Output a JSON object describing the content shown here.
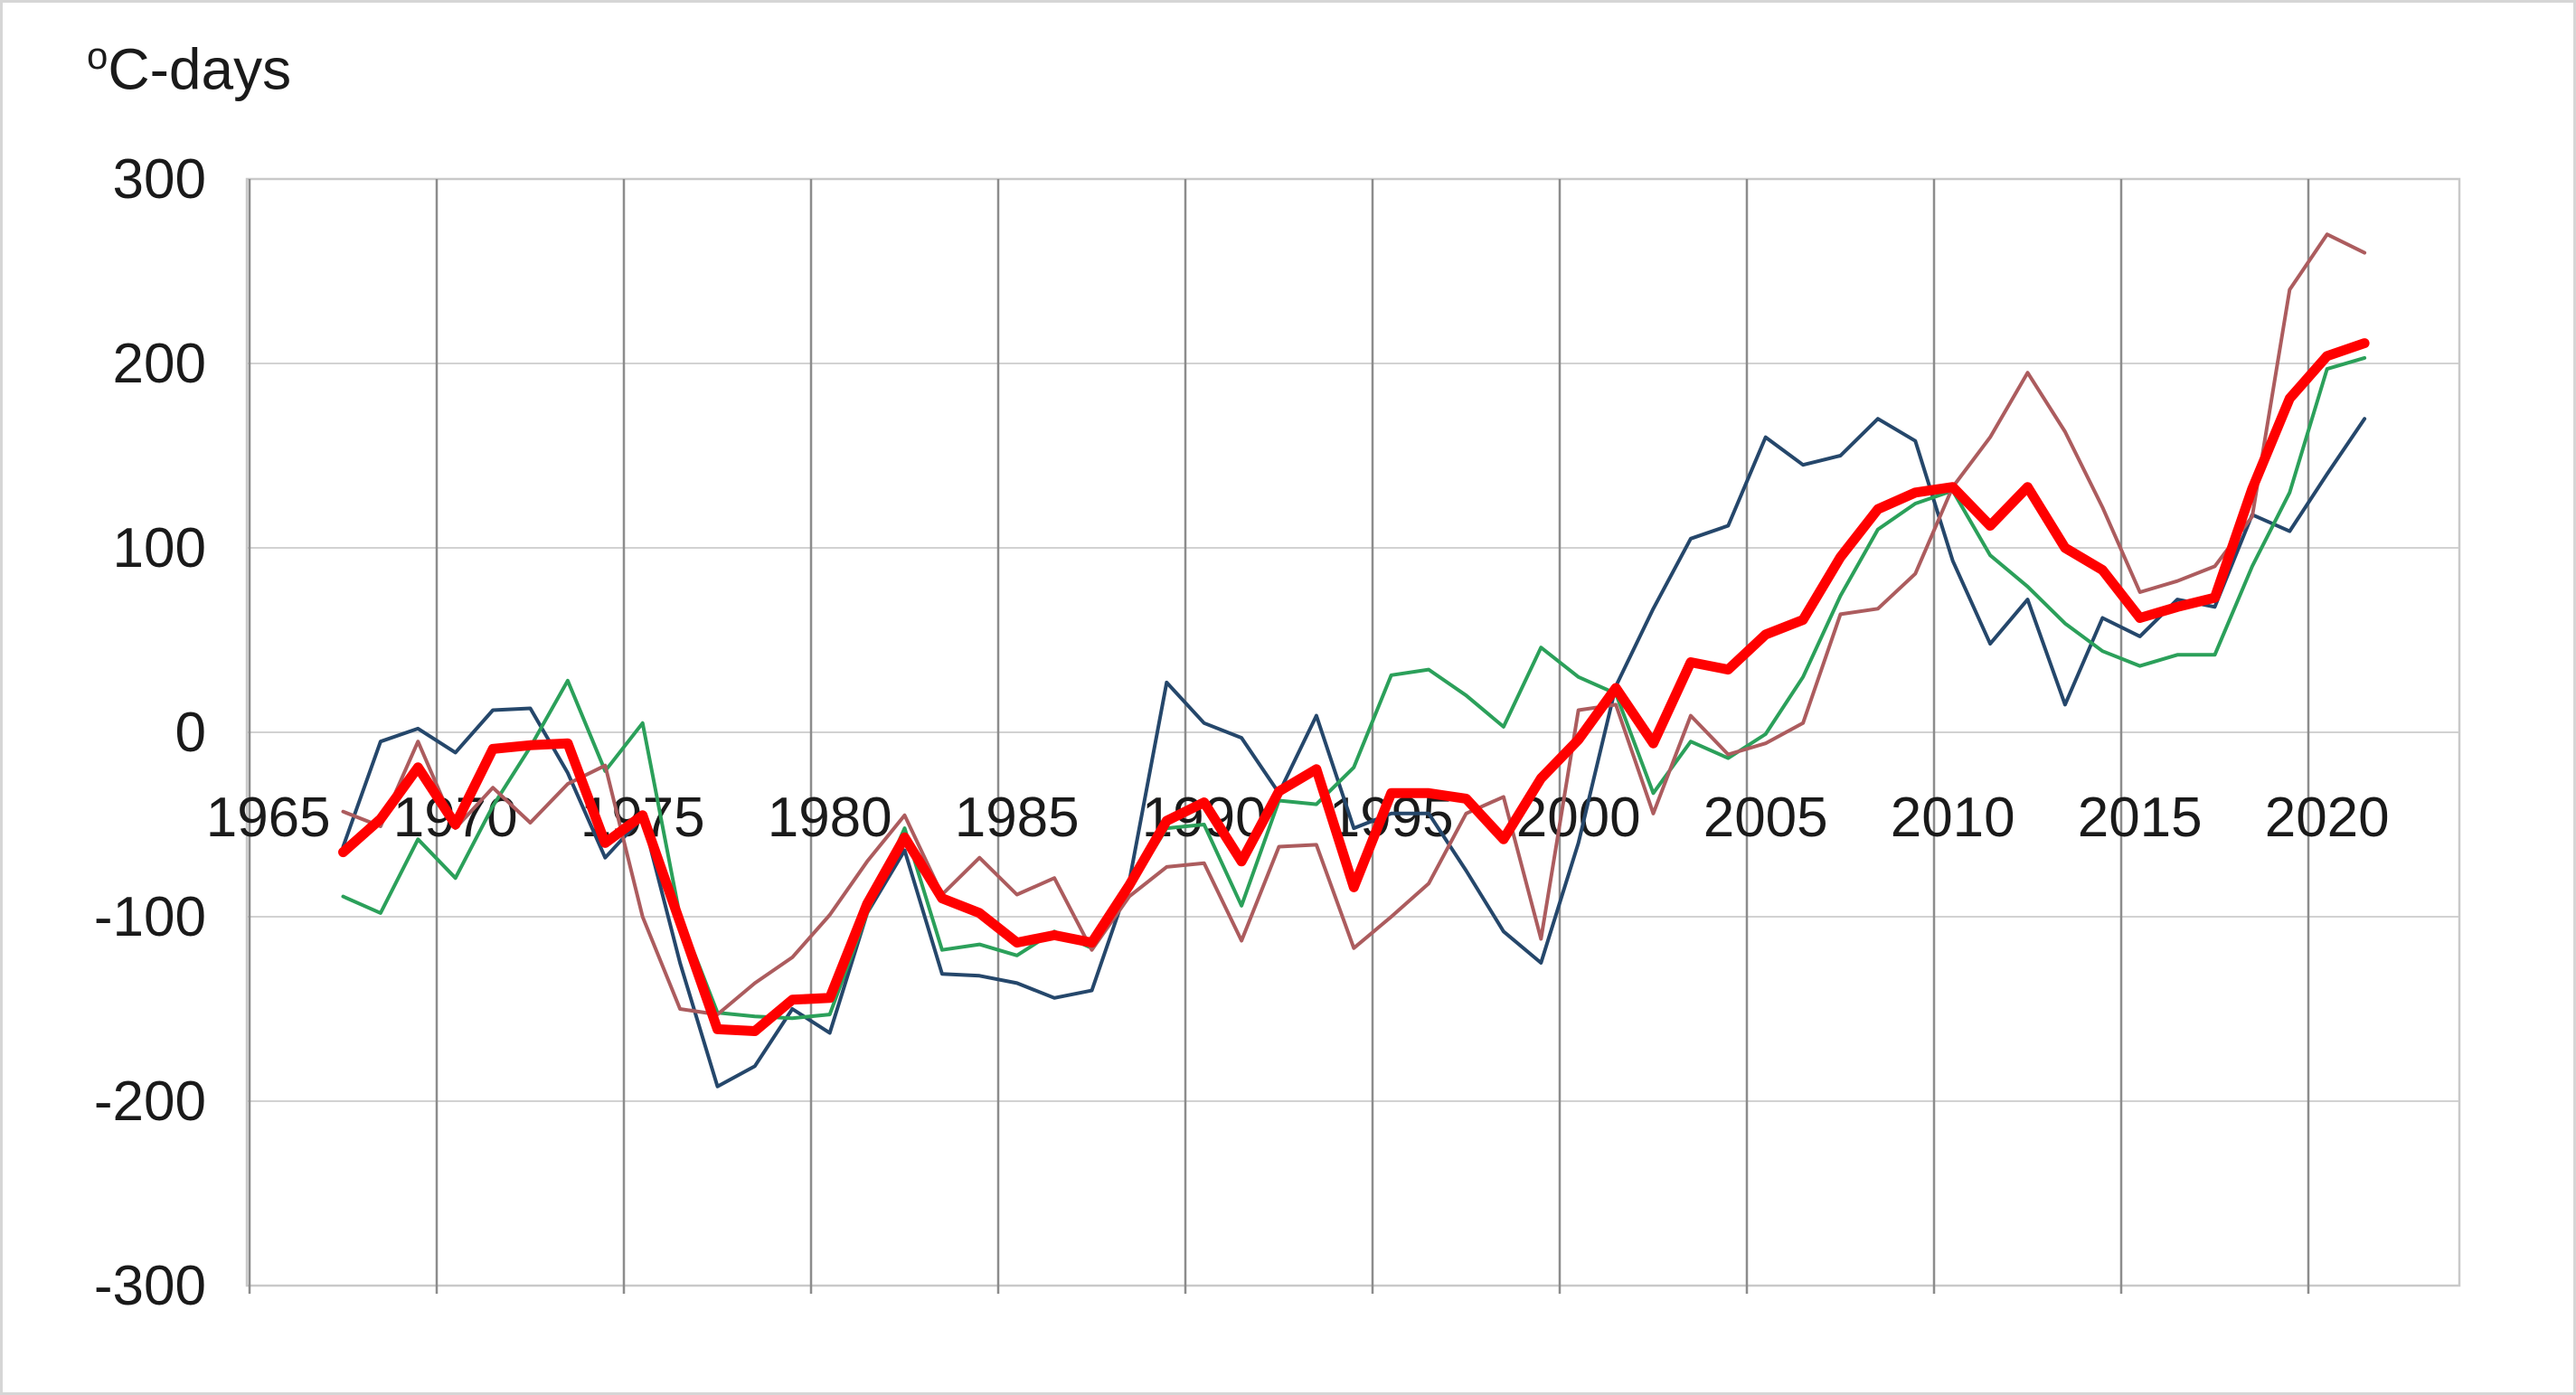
{
  "title": "°C-days",
  "title_base": "C-days",
  "title_superscript": "o",
  "chart_data": {
    "type": "line",
    "title": "°C-days",
    "xlabel": "",
    "ylabel": "°C-days",
    "x": [
      1967,
      1968,
      1969,
      1970,
      1971,
      1972,
      1973,
      1974,
      1975,
      1976,
      1977,
      1978,
      1979,
      1980,
      1981,
      1982,
      1983,
      1984,
      1985,
      1986,
      1987,
      1988,
      1989,
      1990,
      1991,
      1992,
      1993,
      1994,
      1995,
      1996,
      1997,
      1998,
      1999,
      2000,
      2001,
      2002,
      2003,
      2004,
      2005,
      2006,
      2007,
      2008,
      2009,
      2010,
      2011,
      2012,
      2013,
      2014,
      2015,
      2016,
      2017,
      2018,
      2019,
      2020,
      2021
    ],
    "x_ticks": [
      1965,
      1970,
      1975,
      1980,
      1985,
      1990,
      1995,
      2000,
      2005,
      2010,
      2015,
      2020
    ],
    "y_ticks": [
      300,
      200,
      100,
      0,
      -100,
      -200,
      -300
    ],
    "ylim": [
      -300,
      300
    ],
    "xlim": [
      1964.5,
      2023.5
    ],
    "grid": {
      "vertical": true,
      "horizontal": true
    },
    "legend_position": "none",
    "series": [
      {
        "name": "dark-blue-thin",
        "color": "#25476B",
        "width": 4,
        "values": [
          -62,
          -5,
          2,
          -11,
          12,
          13,
          -22,
          -68,
          -46,
          -125,
          -192,
          -181,
          -150,
          -163,
          -98,
          -64,
          -131,
          -132,
          -136,
          -144,
          -140,
          -81,
          27,
          5,
          -3,
          -33,
          9,
          -52,
          -44,
          -44,
          -75,
          -108,
          -125,
          -60,
          25,
          67,
          105,
          112,
          160,
          145,
          150,
          170,
          158,
          93,
          48,
          72,
          15,
          62,
          52,
          72,
          68,
          118,
          109,
          140,
          170
        ]
      },
      {
        "name": "green-thin",
        "color": "#2BA05A",
        "width": 4,
        "values": [
          -89,
          -98,
          -58,
          -79,
          -40,
          -8,
          28,
          -21,
          5,
          -100,
          -152,
          -154,
          -155,
          -153,
          -98,
          -52,
          -118,
          -115,
          -121,
          -108,
          -117,
          -85,
          -52,
          -50,
          -94,
          -37,
          -39,
          -19,
          31,
          34,
          20,
          3,
          46,
          30,
          21,
          -33,
          -5,
          -14,
          -1,
          30,
          74,
          110,
          124,
          131,
          96,
          79,
          59,
          44,
          36,
          42,
          42,
          90,
          130,
          197,
          203
        ]
      },
      {
        "name": "dark-red-thin",
        "color": "#AC5C5E",
        "width": 4,
        "values": [
          -43,
          -51,
          -5,
          -52,
          -30,
          -49,
          -28,
          -18,
          -100,
          -150,
          -153,
          -136,
          -122,
          -99,
          -70,
          -45,
          -88,
          -68,
          -88,
          -79,
          -118,
          -89,
          -73,
          -71,
          -113,
          -62,
          -61,
          -117,
          -100,
          -82,
          -44,
          -35,
          -112,
          12,
          15,
          -44,
          9,
          -12,
          -6,
          5,
          64,
          67,
          86,
          133,
          160,
          195,
          163,
          122,
          76,
          82,
          90,
          117,
          240,
          270,
          260
        ]
      },
      {
        "name": "red-thick",
        "color": "#FF0000",
        "width": 11,
        "values": [
          -65,
          -47,
          -19,
          -50,
          -9,
          -7,
          -6,
          -60,
          -45,
          -103,
          -161,
          -162,
          -145,
          -144,
          -93,
          -57,
          -90,
          -98,
          -114,
          -110,
          -114,
          -83,
          -48,
          -38,
          -70,
          -32,
          -20,
          -84,
          -33,
          -33,
          -36,
          -58,
          -25,
          -4,
          24,
          -6,
          38,
          34,
          53,
          61,
          95,
          121,
          130,
          133,
          112,
          133,
          100,
          88,
          62,
          68,
          73,
          132,
          181,
          204,
          211
        ]
      }
    ]
  },
  "axes": {
    "y_label_color": "#1a1a1a",
    "x_label_color": "#1a1a1a",
    "tick_font_px": 62
  },
  "colors": {
    "background": "#ffffff",
    "outer_border": "#d6d6d6",
    "plot_border": "#c9c9c9",
    "vertical_grid": "#8c8c8c",
    "horizontal_grid": "#d2d2d2"
  }
}
